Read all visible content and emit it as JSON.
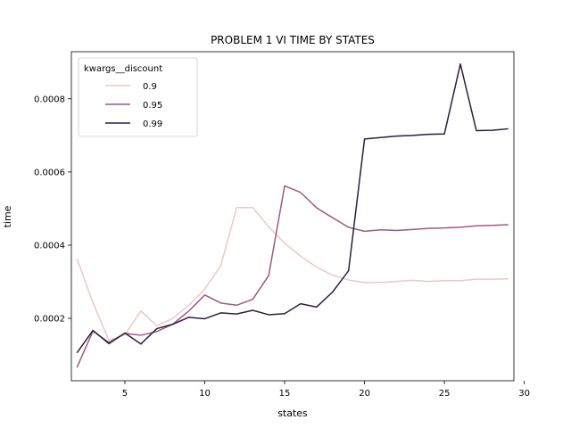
{
  "chart_data": {
    "type": "line",
    "title": "PROBLEM 1 VI TIME BY STATES",
    "xlabel": "states",
    "ylabel": "time",
    "xlim": [
      1.65,
      29.35
    ],
    "ylim": [
      2.96e-05,
      0.0009286
    ],
    "xticks": [
      5,
      10,
      15,
      20,
      25,
      30
    ],
    "yticks": [
      0.0002,
      0.0004,
      0.0006,
      0.0008
    ],
    "ytick_labels": [
      "0.0002",
      "0.0004",
      "0.0006",
      "0.0008"
    ],
    "grid": false,
    "legend": {
      "title": "kwargs__discount",
      "placement": "top-left"
    },
    "x": [
      2,
      3,
      4,
      5,
      6,
      7,
      8,
      9,
      10,
      11,
      12,
      13,
      14,
      15,
      16,
      17,
      18,
      19,
      20,
      21,
      22,
      23,
      24,
      25,
      26,
      27,
      28,
      29
    ],
    "series": [
      {
        "name": "0.9",
        "color": "#ebc9c5",
        "values": [
          0.000363,
          0.000243,
          0.00014,
          0.000155,
          0.00022,
          0.00018,
          0.0002,
          0.000236,
          0.00028,
          0.000344,
          0.000503,
          0.000503,
          0.00045,
          0.000405,
          0.00037,
          0.00034,
          0.000318,
          0.000305,
          0.000298,
          0.000298,
          0.000301,
          0.000304,
          0.000301,
          0.000303,
          0.000303,
          0.000307,
          0.000307,
          0.000308
        ]
      },
      {
        "name": "0.95",
        "color": "#a0597f",
        "values": [
          6.6e-05,
          0.000165,
          0.000134,
          0.000159,
          0.000154,
          0.000164,
          0.000184,
          0.00022,
          0.000264,
          0.000242,
          0.000236,
          0.000252,
          0.000317,
          0.000562,
          0.000544,
          0.000502,
          0.000475,
          0.000449,
          0.000438,
          0.000442,
          0.00044,
          0.000443,
          0.000446,
          0.000447,
          0.000449,
          0.000453,
          0.000454,
          0.000456
        ]
      },
      {
        "name": "0.99",
        "color": "#2d1e3e",
        "values": [
          0.000106,
          0.000167,
          0.000131,
          0.00016,
          0.00013,
          0.000172,
          0.000184,
          0.000203,
          0.000199,
          0.000215,
          0.000212,
          0.000222,
          0.00021,
          0.000213,
          0.00024,
          0.000231,
          0.000272,
          0.00033,
          0.00069,
          0.000694,
          0.000698,
          0.0007,
          0.000703,
          0.000704,
          0.000895,
          0.000713,
          0.000714,
          0.000718
        ]
      }
    ]
  }
}
